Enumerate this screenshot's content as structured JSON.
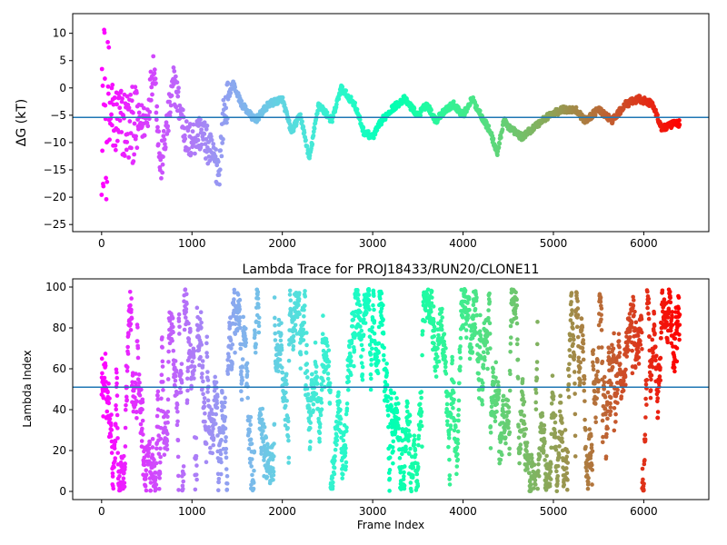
{
  "colors": {
    "reference_line": "#1f77b4",
    "colormap": "rainbow",
    "colormap_start": "#ff0000",
    "colormap_end": "#8000ff"
  },
  "chart_data": [
    {
      "type": "scatter",
      "title": "",
      "xlabel": "",
      "ylabel": "ΔG (kT)",
      "xlim": [
        -320,
        6720
      ],
      "ylim": [
        -26.3,
        13.6
      ],
      "xticks": [
        0,
        1000,
        2000,
        3000,
        4000,
        5000,
        6000
      ],
      "yticks": [
        10,
        5,
        0,
        -5,
        -10,
        -15,
        -20,
        -25
      ],
      "hline": -5.4,
      "n_frames": 6400,
      "color_by": "frame index (rainbow, red at 0 → violet at 6400)",
      "trend_points": [
        [
          0,
          0
        ],
        [
          50,
          -4
        ],
        [
          150,
          -6
        ],
        [
          300,
          -7
        ],
        [
          500,
          -6
        ],
        [
          580,
          5
        ],
        [
          650,
          -15
        ],
        [
          800,
          1
        ],
        [
          950,
          -10
        ],
        [
          1100,
          -8
        ],
        [
          1300,
          -15
        ],
        [
          1350,
          -5
        ],
        [
          1450,
          1
        ],
        [
          1550,
          -3
        ],
        [
          1700,
          -6
        ],
        [
          1850,
          -3
        ],
        [
          2000,
          -2
        ],
        [
          2100,
          -8
        ],
        [
          2200,
          -5
        ],
        [
          2300,
          -13
        ],
        [
          2400,
          -3
        ],
        [
          2550,
          -6
        ],
        [
          2650,
          0
        ],
        [
          2800,
          -3
        ],
        [
          2900,
          -8
        ],
        [
          3000,
          -9
        ],
        [
          3100,
          -6
        ],
        [
          3200,
          -4
        ],
        [
          3350,
          -2
        ],
        [
          3500,
          -5
        ],
        [
          3600,
          -3
        ],
        [
          3700,
          -6
        ],
        [
          3800,
          -4
        ],
        [
          3900,
          -3
        ],
        [
          4000,
          -5
        ],
        [
          4100,
          -2
        ],
        [
          4200,
          -5
        ],
        [
          4300,
          -8
        ],
        [
          4380,
          -12
        ],
        [
          4450,
          -6
        ],
        [
          4500,
          -7
        ],
        [
          4650,
          -9
        ],
        [
          4800,
          -7
        ],
        [
          4950,
          -5
        ],
        [
          5100,
          -4
        ],
        [
          5250,
          -4
        ],
        [
          5350,
          -6
        ],
        [
          5500,
          -4
        ],
        [
          5650,
          -6
        ],
        [
          5800,
          -3
        ],
        [
          5950,
          -2
        ],
        [
          6100,
          -3
        ],
        [
          6200,
          -7.5
        ],
        [
          6350,
          -6.5
        ],
        [
          6400,
          -6.5
        ]
      ],
      "spread": "large scatter near frame 0 (from -25 to 13), narrowing to ±1 after ~1500"
    },
    {
      "type": "scatter",
      "title": "Lambda Trace for PROJ18433/RUN20/CLONE11",
      "xlabel": "Frame Index",
      "ylabel": "Lambda Index",
      "xlim": [
        -320,
        6720
      ],
      "ylim": [
        -4,
        104
      ],
      "xticks": [
        0,
        1000,
        2000,
        3000,
        4000,
        5000,
        6000
      ],
      "yticks": [
        100,
        80,
        60,
        40,
        20,
        0
      ],
      "hline": 51,
      "n_frames": 6400,
      "value_range": [
        0,
        99
      ],
      "color_by": "frame index (rainbow, red at 0 → violet at 6400)"
    }
  ]
}
